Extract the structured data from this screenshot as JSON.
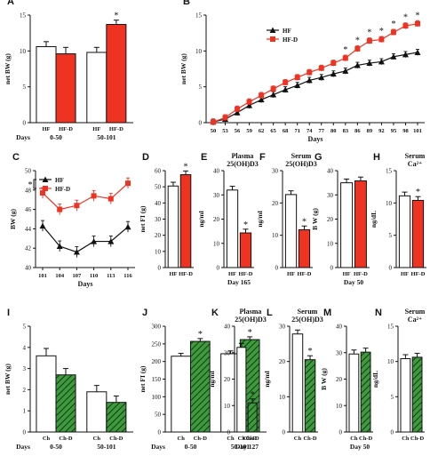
{
  "colors": {
    "red": "#ee3322",
    "green": "#3f9a3f",
    "black": "#111111",
    "white": "#ffffff"
  },
  "panels": {
    "A": {
      "letter": "A",
      "ylabel": "net BW (g)",
      "ylim": [
        0,
        15
      ],
      "yticks": [
        0,
        5,
        10,
        15
      ],
      "series": [
        {
          "name": "HF",
          "fill": "white"
        },
        {
          "name": "HF-D",
          "fill": "red"
        }
      ],
      "groups": [
        {
          "label": "0-50",
          "values": [
            10.6,
            9.6
          ],
          "err": [
            0.7,
            0.9
          ],
          "stars": [
            false,
            false
          ]
        },
        {
          "label": "50-101",
          "values": [
            9.8,
            13.7
          ],
          "err": [
            0.7,
            0.6
          ],
          "stars": [
            false,
            true
          ]
        }
      ],
      "days_label": "Days"
    },
    "B": {
      "letter": "B",
      "ylabel": "net BW (g)",
      "xlabel": "Days",
      "ylim": [
        0,
        15
      ],
      "yticks": [
        0,
        5,
        10,
        15
      ],
      "x": [
        "50",
        "53",
        "56",
        "59",
        "62",
        "65",
        "68",
        "71",
        "74",
        "77",
        "80",
        "83",
        "86",
        "89",
        "92",
        "95",
        "98",
        "101"
      ],
      "series": [
        {
          "name": "HF",
          "marker": "triangle",
          "color": "black",
          "values": [
            0.1,
            0.5,
            1.4,
            2.4,
            3.2,
            3.9,
            4.6,
            5.2,
            5.9,
            6.3,
            6.8,
            7.2,
            8.0,
            8.3,
            8.5,
            9.2,
            9.5,
            9.8
          ]
        },
        {
          "name": "HF-D",
          "marker": "square",
          "color": "red",
          "values": [
            0.1,
            0.7,
            1.9,
            2.9,
            3.8,
            4.7,
            5.6,
            6.3,
            7.0,
            7.6,
            8.3,
            9.0,
            10.3,
            11.4,
            11.6,
            12.6,
            13.5,
            13.8
          ]
        }
      ],
      "stars": [
        "83",
        "86",
        "89",
        "92",
        "95",
        "98",
        "101"
      ]
    },
    "C": {
      "letter": "C",
      "ylabel": "BW (g)",
      "xlabel": "Days",
      "ylim": [
        40,
        50
      ],
      "yticks": [
        40,
        42,
        44,
        46,
        48,
        50
      ],
      "x": [
        "101",
        "104",
        "107",
        "110",
        "113",
        "116"
      ],
      "series": [
        {
          "name": "HF",
          "marker": "triangle",
          "color": "black",
          "values": [
            44.3,
            42.2,
            41.6,
            42.7,
            42.7,
            44.2
          ]
        },
        {
          "name": "HF-D",
          "marker": "square",
          "color": "red",
          "values": [
            47.7,
            46.0,
            46.4,
            47.4,
            47.1,
            48.7
          ]
        }
      ]
    },
    "D": {
      "letter": "D",
      "ylabel": "net FI (g)",
      "ylim": [
        0,
        60
      ],
      "yticks": [
        0,
        10,
        20,
        30,
        40,
        50,
        60
      ],
      "cats": [
        "HF",
        "HF-D"
      ],
      "values": [
        50.5,
        57.5
      ],
      "fills": [
        "white",
        "red"
      ],
      "stars": [
        false,
        true
      ]
    },
    "E": {
      "letter": "E",
      "title": "Plasma",
      "subtitle": "25(OH)D3",
      "ylabel": "ng/ml",
      "ylim": [
        0,
        40
      ],
      "yticks": [
        0,
        10,
        20,
        30,
        40
      ],
      "cats": [
        "HF",
        "HF-D"
      ],
      "values": [
        32.0,
        14.3
      ],
      "fills": [
        "white",
        "red"
      ],
      "stars": [
        false,
        true
      ],
      "footer": "Day 165"
    },
    "F": {
      "letter": "F",
      "title": "Serum",
      "subtitle": "25(OH)D3",
      "ylabel": "ng/ml",
      "ylim": [
        0,
        30
      ],
      "yticks": [
        0,
        10,
        20,
        30
      ],
      "cats": [
        "HF",
        "HF-D"
      ],
      "values": [
        22.6,
        11.7
      ],
      "fills": [
        "white",
        "red"
      ],
      "stars": [
        false,
        true
      ]
    },
    "G": {
      "letter": "G",
      "ylabel": "B W (g)",
      "ylim": [
        0,
        40
      ],
      "yticks": [
        0,
        10,
        20,
        30,
        40
      ],
      "cats": [
        "HF",
        "HF-D"
      ],
      "values": [
        35.0,
        35.8
      ],
      "fills": [
        "white",
        "red"
      ],
      "stars": [
        false,
        false
      ],
      "footer": "Day 50"
    },
    "H": {
      "letter": "H",
      "title": "Serum",
      "subtitle": "Ca²⁺",
      "ylabel": "ng/dL",
      "ylim": [
        0,
        15
      ],
      "yticks": [
        0,
        5,
        10,
        15
      ],
      "cats": [
        "HF",
        "HF-D"
      ],
      "values": [
        11.1,
        10.4
      ],
      "fills": [
        "white",
        "red"
      ],
      "stars": [
        false,
        true
      ]
    },
    "I": {
      "letter": "I",
      "ylabel": "net BW (g)",
      "ylim": [
        0,
        5
      ],
      "yticks": [
        0,
        1,
        2,
        3,
        4,
        5
      ],
      "series": [
        {
          "name": "Ch",
          "fill": "white"
        },
        {
          "name": "Ch-D",
          "fill": "green"
        }
      ],
      "groups": [
        {
          "label": "0-50",
          "values": [
            3.6,
            2.7
          ],
          "err": [
            0.35,
            0.3
          ],
          "stars": [
            false,
            false
          ]
        },
        {
          "label": "50-101",
          "values": [
            1.9,
            1.4
          ],
          "err": [
            0.3,
            0.3
          ],
          "stars": [
            false,
            false
          ]
        }
      ],
      "days_label": "Days"
    },
    "J": {
      "letter": "J",
      "ylabel": "net FI (g)",
      "ylim": [
        0,
        300
      ],
      "yticks": [
        0,
        50,
        100,
        150,
        200,
        250,
        300
      ],
      "series": [
        {
          "name": "Ch",
          "fill": "white"
        },
        {
          "name": "Ch-D",
          "fill": "green"
        }
      ],
      "groups": [
        {
          "label": "0-50",
          "values": [
            215,
            257
          ],
          "err": [
            8,
            8
          ],
          "stars": [
            false,
            true
          ]
        },
        {
          "label": "50-101",
          "values": [
            222,
            262
          ],
          "err": [
            8,
            8
          ],
          "stars": [
            false,
            true
          ]
        }
      ],
      "days_label": "Days"
    },
    "K": {
      "letter": "K",
      "title": "Plasma",
      "subtitle": "25(OH)D3",
      "ylabel": "ng/ml",
      "ylim": [
        0,
        40
      ],
      "yticks": [
        0,
        10,
        20,
        30,
        40
      ],
      "cats": [
        "Ch",
        "Ch-D"
      ],
      "values": [
        32.0,
        11.0
      ],
      "fills": [
        "white",
        "green"
      ],
      "stars": [
        false,
        true
      ],
      "footer": "Day 127"
    },
    "L": {
      "letter": "L",
      "title": "Serum",
      "subtitle": "25(OH)D3",
      "ylabel": "ng/ml",
      "ylim": [
        0,
        30
      ],
      "yticks": [
        0,
        10,
        20,
        30
      ],
      "cats": [
        "Ch",
        "Ch-D"
      ],
      "values": [
        27.8,
        20.5
      ],
      "fills": [
        "white",
        "green"
      ],
      "stars": [
        false,
        true
      ]
    },
    "M": {
      "letter": "M",
      "ylabel": "B W (g)",
      "ylim": [
        0,
        40
      ],
      "yticks": [
        0,
        10,
        20,
        30,
        40
      ],
      "cats": [
        "Ch",
        "Ch-D"
      ],
      "values": [
        29.5,
        30.2
      ],
      "fills": [
        "white",
        "green"
      ],
      "stars": [
        false,
        false
      ],
      "footer": "Day 50"
    },
    "N": {
      "letter": "N",
      "title": "Serum",
      "subtitle": "Ca²⁺",
      "ylabel": "ng/dL",
      "ylim": [
        0,
        15
      ],
      "yticks": [
        0,
        5,
        10,
        15
      ],
      "cats": [
        "Ch",
        "Ch-D"
      ],
      "values": [
        10.4,
        10.6
      ],
      "fills": [
        "white",
        "green"
      ],
      "stars": [
        false,
        false
      ]
    }
  },
  "chart_data": [
    {
      "panel": "A",
      "type": "bar",
      "ylabel": "net BW (g)",
      "ylim": [
        0,
        15
      ],
      "categories": [
        "0-50",
        "50-101"
      ],
      "series": [
        {
          "name": "HF",
          "values": [
            10.6,
            9.8
          ]
        },
        {
          "name": "HF-D",
          "values": [
            9.6,
            13.7
          ]
        }
      ]
    },
    {
      "panel": "B",
      "type": "line",
      "xlabel": "Days",
      "ylabel": "net BW (g)",
      "ylim": [
        0,
        15
      ],
      "x": [
        50,
        53,
        56,
        59,
        62,
        65,
        68,
        71,
        74,
        77,
        80,
        83,
        86,
        89,
        92,
        95,
        98,
        101
      ],
      "series": [
        {
          "name": "HF",
          "values": [
            0.1,
            0.5,
            1.4,
            2.4,
            3.2,
            3.9,
            4.6,
            5.2,
            5.9,
            6.3,
            6.8,
            7.2,
            8.0,
            8.3,
            8.5,
            9.2,
            9.5,
            9.8
          ]
        },
        {
          "name": "HF-D",
          "values": [
            0.1,
            0.7,
            1.9,
            2.9,
            3.8,
            4.7,
            5.6,
            6.3,
            7.0,
            7.6,
            8.3,
            9.0,
            10.3,
            11.4,
            11.6,
            12.6,
            13.5,
            13.8
          ]
        }
      ]
    },
    {
      "panel": "C",
      "type": "line",
      "xlabel": "Days",
      "ylabel": "BW (g)",
      "ylim": [
        40,
        50
      ],
      "x": [
        101,
        104,
        107,
        110,
        113,
        116
      ],
      "series": [
        {
          "name": "HF",
          "values": [
            44.3,
            42.2,
            41.6,
            42.7,
            42.7,
            44.2
          ]
        },
        {
          "name": "HF-D",
          "values": [
            47.7,
            46.0,
            46.4,
            47.4,
            47.1,
            48.7
          ]
        }
      ]
    },
    {
      "panel": "D",
      "type": "bar",
      "ylabel": "net FI (g)",
      "categories": [
        "HF",
        "HF-D"
      ],
      "values": [
        50.5,
        57.5
      ],
      "ylim": [
        0,
        60
      ]
    },
    {
      "panel": "E",
      "type": "bar",
      "title": "Plasma 25(OH)D3",
      "ylabel": "ng/ml",
      "categories": [
        "HF",
        "HF-D"
      ],
      "values": [
        32.0,
        14.3
      ],
      "ylim": [
        0,
        40
      ]
    },
    {
      "panel": "F",
      "type": "bar",
      "title": "Serum 25(OH)D3",
      "ylabel": "ng/ml",
      "categories": [
        "HF",
        "HF-D"
      ],
      "values": [
        22.6,
        11.7
      ],
      "ylim": [
        0,
        30
      ]
    },
    {
      "panel": "G",
      "type": "bar",
      "ylabel": "B W (g)",
      "categories": [
        "HF",
        "HF-D"
      ],
      "values": [
        35.0,
        35.8
      ],
      "ylim": [
        0,
        40
      ]
    },
    {
      "panel": "H",
      "type": "bar",
      "title": "Serum Ca2+",
      "ylabel": "ng/dL",
      "categories": [
        "HF",
        "HF-D"
      ],
      "values": [
        11.1,
        10.4
      ],
      "ylim": [
        0,
        15
      ]
    },
    {
      "panel": "I",
      "type": "bar",
      "ylabel": "net BW (g)",
      "ylim": [
        0,
        5
      ],
      "categories": [
        "0-50",
        "50-101"
      ],
      "series": [
        {
          "name": "Ch",
          "values": [
            3.6,
            1.9
          ]
        },
        {
          "name": "Ch-D",
          "values": [
            2.7,
            1.4
          ]
        }
      ]
    },
    {
      "panel": "J",
      "type": "bar",
      "ylabel": "net FI (g)",
      "ylim": [
        0,
        300
      ],
      "categories": [
        "0-50",
        "50-101"
      ],
      "series": [
        {
          "name": "Ch",
          "values": [
            215,
            222
          ]
        },
        {
          "name": "Ch-D",
          "values": [
            257,
            262
          ]
        }
      ]
    },
    {
      "panel": "K",
      "type": "bar",
      "title": "Plasma 25(OH)D3",
      "ylabel": "ng/ml",
      "categories": [
        "Ch",
        "Ch-D"
      ],
      "values": [
        32.0,
        11.0
      ],
      "ylim": [
        0,
        40
      ]
    },
    {
      "panel": "L",
      "type": "bar",
      "title": "Serum 25(OH)D3",
      "ylabel": "ng/ml",
      "categories": [
        "Ch",
        "Ch-D"
      ],
      "values": [
        27.8,
        20.5
      ],
      "ylim": [
        0,
        30
      ]
    },
    {
      "panel": "M",
      "type": "bar",
      "ylabel": "B W (g)",
      "categories": [
        "Ch",
        "Ch-D"
      ],
      "values": [
        29.5,
        30.2
      ],
      "ylim": [
        0,
        40
      ]
    },
    {
      "panel": "N",
      "type": "bar",
      "title": "Serum Ca2+",
      "ylabel": "ng/dL",
      "categories": [
        "Ch",
        "Ch-D"
      ],
      "values": [
        10.4,
        10.6
      ],
      "ylim": [
        0,
        15
      ]
    }
  ]
}
